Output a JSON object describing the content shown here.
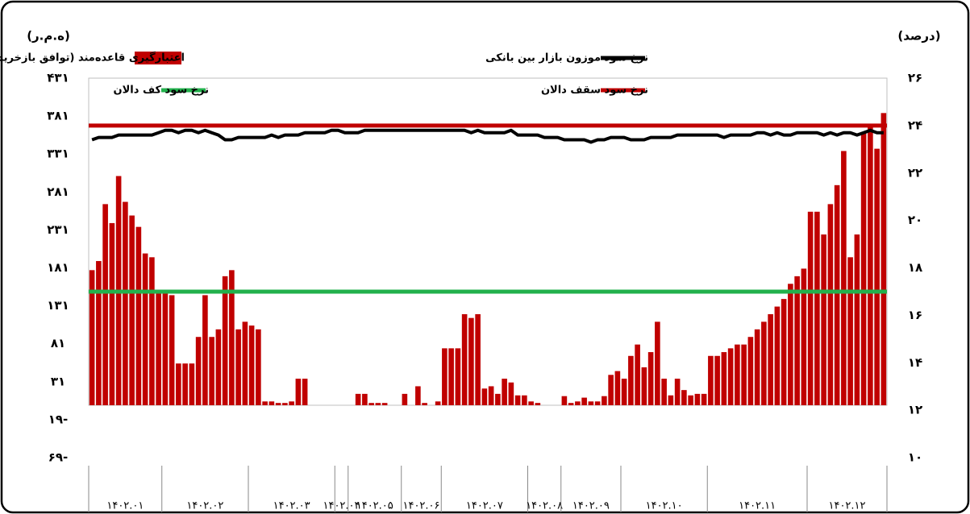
{
  "chart_data": {
    "type": "bar",
    "y_unit": "(ه.م.ر)",
    "y2_unit": "(درصد)",
    "categories": [
      "۱۴۰۲.۰۱",
      "۱۴۰۲.۰۱",
      "۱۴۰۲.۰۱",
      "۱۴۰۲.۰۱",
      "۱۴۰۲.۰۱",
      "۱۴۰۲.۰۱",
      "۱۴۰۲.۰۱",
      "۱۴۰۲.۰۱",
      "۱۴۰۲.۰۱",
      "۱۴۰۲.۰۱",
      "۱۴۰۲.۰۱",
      "۱۴۰۲.۰۲",
      "۱۴۰۲.۰۲",
      "۱۴۰۲.۰۲",
      "۱۴۰۲.۰۲",
      "۱۴۰۲.۰۲",
      "۱۴۰۲.۰۲",
      "۱۴۰۲.۰۲",
      "۱۴۰۲.۰۲",
      "۱۴۰۲.۰۲",
      "۱۴۰۲.۰۲",
      "۱۴۰۲.۰۲",
      "۱۴۰۲.۰۲",
      "۱۴۰۲.۰۲",
      "۱۴۰۲.۰۳",
      "۱۴۰۲.۰۳",
      "۱۴۰۲.۰۳",
      "۱۴۰۲.۰۳",
      "۱۴۰۲.۰۳",
      "۱۴۰۲.۰۳",
      "۱۴۰۲.۰۳",
      "۱۴۰۲.۰۳",
      "۱۴۰۲.۰۳",
      "۱۴۰۲.۰۳",
      "۱۴۰۲.۰۳",
      "۱۴۰۲.۰۳",
      "۱۴۰۲.۰۳",
      "۱۴۰۲.۰۴",
      "۱۴۰۲.۰۴",
      "۱۴۰۲.۰۵",
      "۱۴۰۲.۰۵",
      "۱۴۰۲.۰۵",
      "۱۴۰۲.۰۵",
      "۱۴۰۲.۰۵",
      "۱۴۰۲.۰۵",
      "۱۴۰۲.۰۵",
      "۱۴۰۲.۰۵",
      "۱۴۰۲.۰۶",
      "۱۴۰۲.۰۶",
      "۱۴۰۲.۰۶",
      "۱۴۰۲.۰۶",
      "۱۴۰۲.۰۶",
      "۱۴۰۲.۰۶",
      "۱۴۰۲.۰۷",
      "۱۴۰۲.۰۷",
      "۱۴۰۲.۰۷",
      "۱۴۰۲.۰۷",
      "۱۴۰۲.۰۷",
      "۱۴۰۲.۰۷",
      "۱۴۰۲.۰۷",
      "۱۴۰۲.۰۷",
      "۱۴۰۲.۰۷",
      "۱۴۰۲.۰۷",
      "۱۴۰۲.۰۷",
      "۱۴۰۲.۰۷",
      "۱۴۰۲.۰۷",
      "۱۴۰۲.۰۸",
      "۱۴۰۲.۰۸",
      "۱۴۰۲.۰۸",
      "۱۴۰۲.۰۸",
      "۱۴۰۲.۰۸",
      "۱۴۰۲.۰۹",
      "۱۴۰۲.۰۹",
      "۱۴۰۲.۰۹",
      "۱۴۰۲.۰۹",
      "۱۴۰۲.۰۹",
      "۱۴۰۲.۰۹",
      "۱۴۰۲.۰۹",
      "۱۴۰۲.۰۹",
      "۱۴۰۲.۰۹",
      "۱۴۰۲.۱۰",
      "۱۴۰۲.۱۰",
      "۱۴۰۲.۱۰",
      "۱۴۰۲.۱۰",
      "۱۴۰۲.۱۰",
      "۱۴۰۲.۱۰",
      "۱۴۰۲.۱۰",
      "۱۴۰۲.۱۰",
      "۱۴۰۲.۱۰",
      "۱۴۰۲.۱۰",
      "۱۴۰۲.۱۰",
      "۱۴۰۲.۱۰",
      "۱۴۰۲.۱۰",
      "۱۴۰۲.۱۱",
      "۱۴۰۲.۱۱",
      "۱۴۰۲.۱۱",
      "۱۴۰۲.۱۱",
      "۱۴۰۲.۱۱",
      "۱۴۰۲.۱۱",
      "۱۴۰۲.۱۱",
      "۱۴۰۲.۱۱",
      "۱۴۰۲.۱۱",
      "۱۴۰۲.۱۱",
      "۱۴۰۲.۱۱",
      "۱۴۰۲.۱۱",
      "۱۴۰۲.۱۱",
      "۱۴۰۲.۱۱",
      "۱۴۰۲.۱۱",
      "۱۴۰۲.۱۲",
      "۱۴۰۲.۱۲",
      "۱۴۰۲.۱۲",
      "۱۴۰۲.۱۲",
      "۱۴۰۲.۱۲",
      "۱۴۰۲.۱۲",
      "۱۴۰۲.۱۲",
      "۱۴۰۲.۱۲",
      "۱۴۰۲.۱۲",
      "۱۴۰۲.۱۲",
      "۱۴۰۲.۱۲",
      "۱۴۰۲.۱۲"
    ],
    "series": [
      {
        "name": "اعتبارگیری قاعده‌مند (توافق بازخرید)(محور سمت چپ)",
        "color": "#c00000",
        "axis": "y",
        "values": [
          178,
          190,
          265,
          240,
          302,
          268,
          250,
          235,
          200,
          195,
          150,
          150,
          145,
          55,
          55,
          55,
          90,
          145,
          90,
          100,
          170,
          178,
          100,
          110,
          105,
          100,
          5,
          5,
          3,
          3,
          5,
          35,
          35,
          0,
          0,
          0,
          0,
          0,
          0,
          0,
          15,
          15,
          3,
          3,
          3,
          0,
          0,
          15,
          0,
          25,
          3,
          0,
          5,
          75,
          75,
          75,
          120,
          115,
          120,
          22,
          25,
          15,
          35,
          30,
          13,
          13,
          5,
          3,
          0,
          0,
          0,
          12,
          3,
          5,
          10,
          5,
          5,
          12,
          40,
          45,
          35,
          65,
          80,
          50,
          70,
          110,
          35,
          13,
          35,
          20,
          13,
          15,
          15,
          65,
          65,
          70,
          75,
          80,
          80,
          90,
          100,
          110,
          120,
          130,
          140,
          160,
          170,
          180,
          255,
          255,
          225,
          265,
          290,
          335,
          195,
          225,
          360,
          370,
          338,
          385
        ]
      },
      {
        "name": "نرخ سود موزون بازار بین بانکی",
        "color": "#000000",
        "axis": "y2",
        "values": [
          23.4,
          23.5,
          23.5,
          23.5,
          23.6,
          23.6,
          23.6,
          23.6,
          23.6,
          23.6,
          23.7,
          23.8,
          23.8,
          23.7,
          23.8,
          23.8,
          23.7,
          23.8,
          23.7,
          23.6,
          23.4,
          23.4,
          23.5,
          23.5,
          23.5,
          23.5,
          23.5,
          23.6,
          23.5,
          23.6,
          23.6,
          23.6,
          23.7,
          23.7,
          23.7,
          23.7,
          23.8,
          23.8,
          23.7,
          23.7,
          23.7,
          23.8,
          23.8,
          23.8,
          23.8,
          23.8,
          23.8,
          23.8,
          23.8,
          23.8,
          23.8,
          23.8,
          23.8,
          23.8,
          23.8,
          23.8,
          23.8,
          23.7,
          23.8,
          23.7,
          23.7,
          23.7,
          23.7,
          23.8,
          23.6,
          23.6,
          23.6,
          23.6,
          23.5,
          23.5,
          23.5,
          23.4,
          23.4,
          23.4,
          23.4,
          23.3,
          23.4,
          23.4,
          23.5,
          23.5,
          23.5,
          23.4,
          23.4,
          23.4,
          23.5,
          23.5,
          23.5,
          23.5,
          23.6,
          23.6,
          23.6,
          23.6,
          23.6,
          23.6,
          23.6,
          23.5,
          23.6,
          23.6,
          23.6,
          23.6,
          23.7,
          23.7,
          23.6,
          23.7,
          23.6,
          23.6,
          23.7,
          23.7,
          23.7,
          23.7,
          23.6,
          23.7,
          23.6,
          23.7,
          23.7,
          23.6,
          23.7,
          23.8,
          23.7,
          23.7
        ]
      },
      {
        "name": "نرخ سود سقف دالان",
        "color": "#c00000",
        "axis": "y2",
        "value": 24
      },
      {
        "name": "نرخ سود کف دالان",
        "color": "#22b14c",
        "axis": "y2",
        "value": 17
      }
    ],
    "ylim": [
      -69,
      431
    ],
    "yticks": [
      {
        "value": 431,
        "label": "۴۳۱"
      },
      {
        "value": 381,
        "label": "۳۸۱"
      },
      {
        "value": 331,
        "label": "۳۳۱"
      },
      {
        "value": 281,
        "label": "۲۸۱"
      },
      {
        "value": 231,
        "label": "۲۳۱"
      },
      {
        "value": 181,
        "label": "۱۸۱"
      },
      {
        "value": 131,
        "label": "۱۳۱"
      },
      {
        "value": 81,
        "label": "۸۱"
      },
      {
        "value": 31,
        "label": "۳۱"
      },
      {
        "value": -19,
        "label": "۱۹-"
      },
      {
        "value": -69,
        "label": "۶۹-"
      }
    ],
    "y2lim": [
      10,
      26
    ],
    "y2ticks": [
      {
        "value": 26,
        "label": "۲۶"
      },
      {
        "value": 24,
        "label": "۲۴"
      },
      {
        "value": 22,
        "label": "۲۲"
      },
      {
        "value": 20,
        "label": "۲۰"
      },
      {
        "value": 18,
        "label": "۱۸"
      },
      {
        "value": 16,
        "label": "۱۶"
      },
      {
        "value": 14,
        "label": "۱۴"
      },
      {
        "value": 12,
        "label": "۱۲"
      },
      {
        "value": 10,
        "label": "۱۰"
      }
    ]
  }
}
